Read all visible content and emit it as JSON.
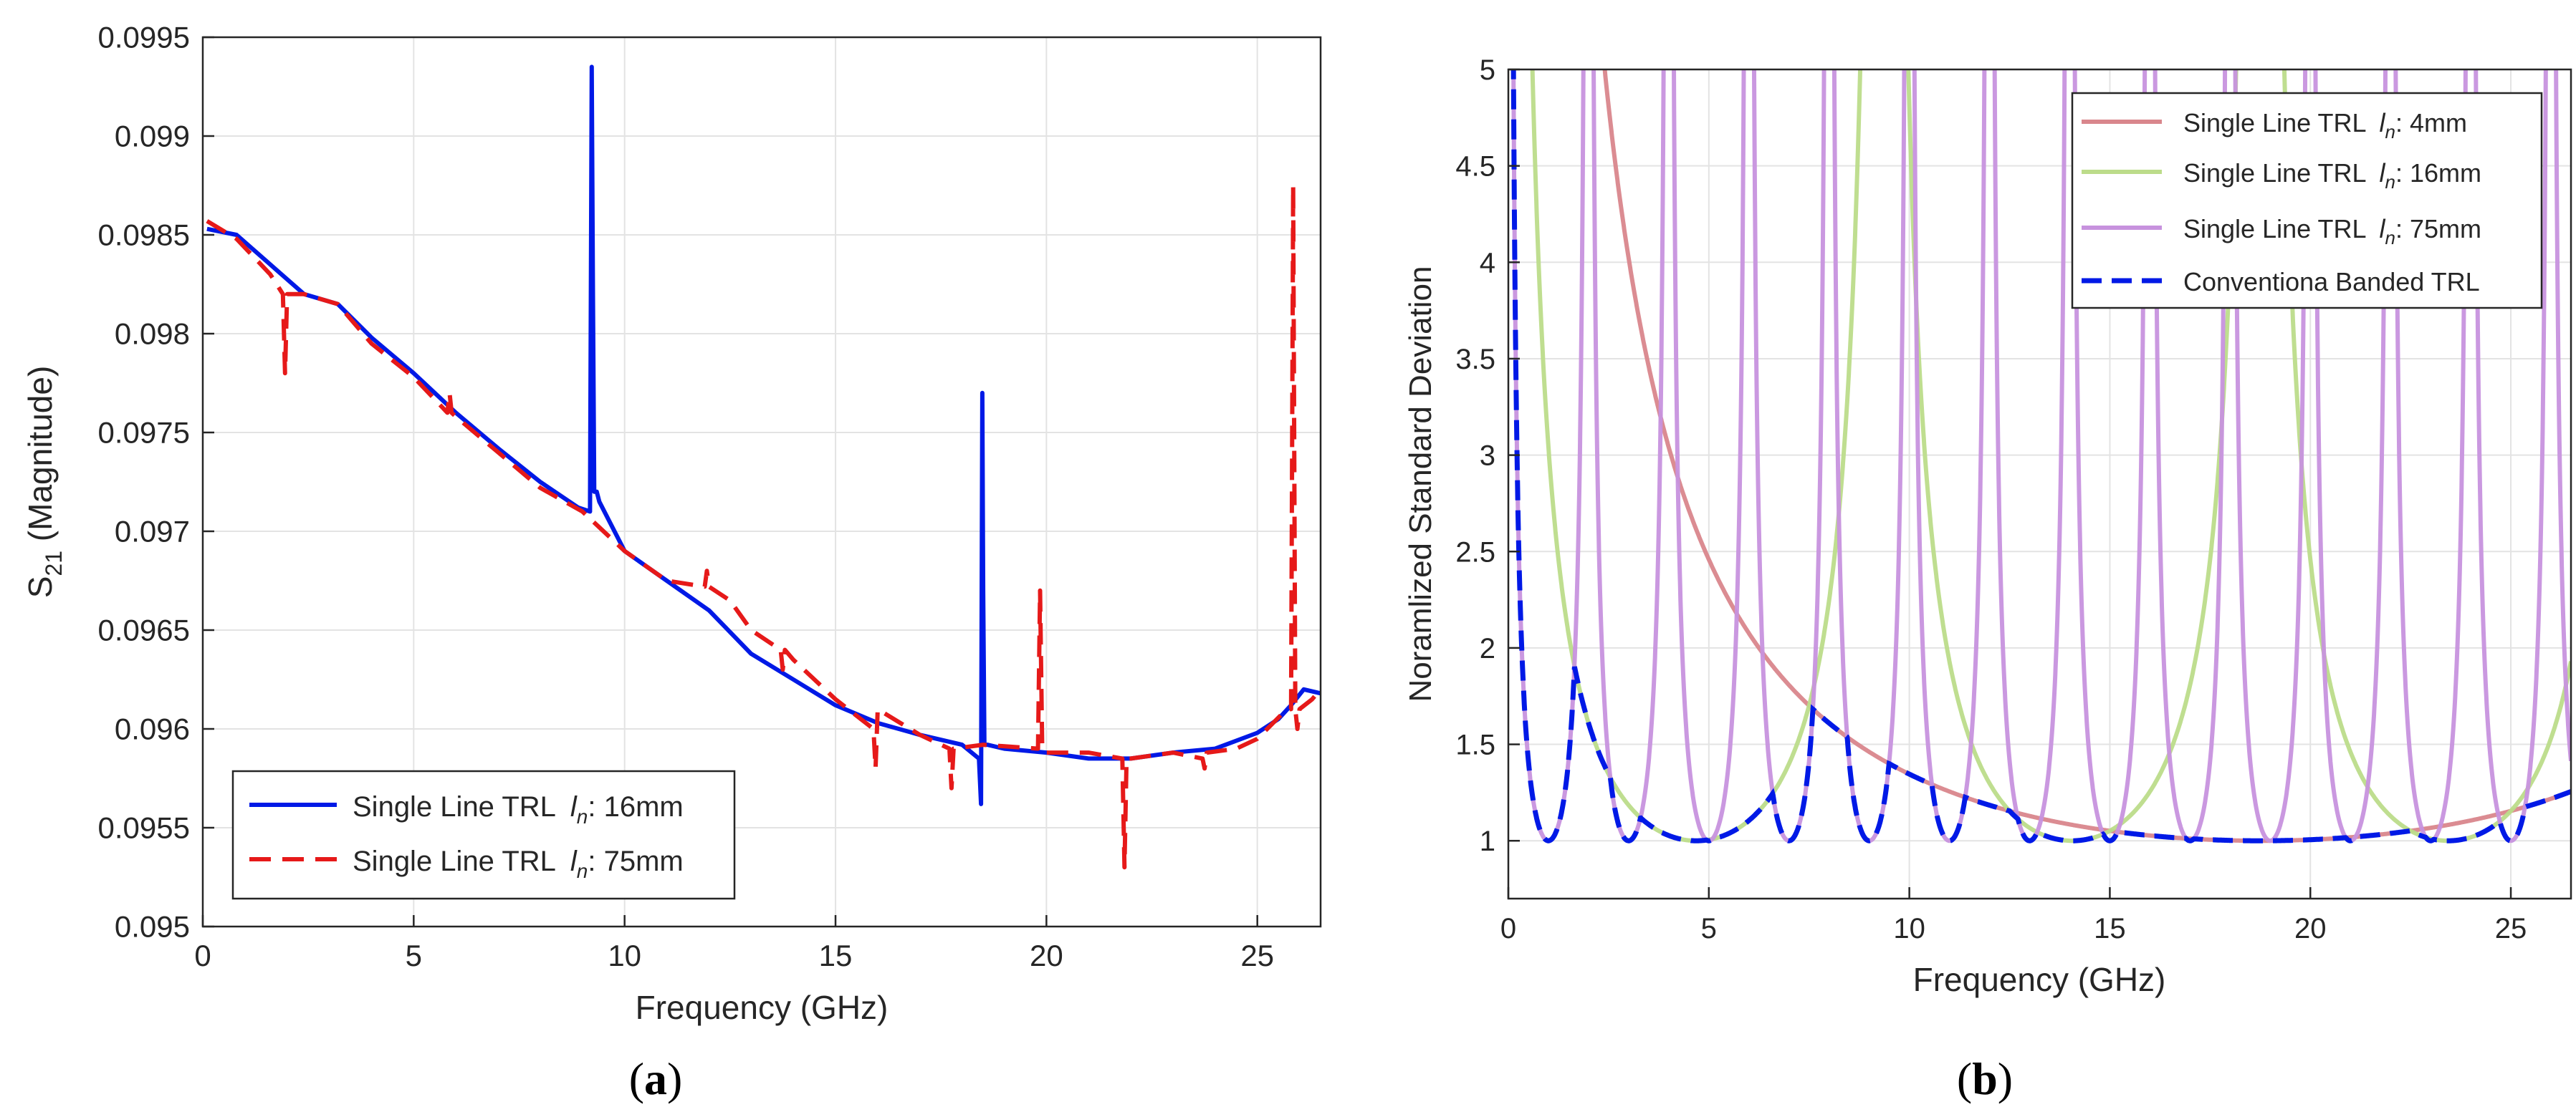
{
  "chart_data": [
    {
      "id": "a",
      "type": "line",
      "panel_label": "(a)",
      "panel_label_letter": "a",
      "title": "",
      "xlabel": "Frequency (GHz)",
      "ylabel_main": "S",
      "ylabel_sub": "21",
      "ylabel_rest": " (Magnitude)",
      "xlim": [
        0,
        26.5
      ],
      "ylim": [
        0.095,
        0.0995
      ],
      "xticks": [
        0,
        5,
        10,
        15,
        20,
        25
      ],
      "xtick_labels": [
        "0",
        "5",
        "10",
        "15",
        "20",
        "25"
      ],
      "yticks": [
        0.095,
        0.0955,
        0.096,
        0.0965,
        0.097,
        0.0975,
        0.098,
        0.0985,
        0.099,
        0.0995
      ],
      "ytick_labels": [
        "0.095",
        "0.0955",
        "0.096",
        "0.0965",
        "0.097",
        "0.0975",
        "0.098",
        "0.0985",
        "0.099",
        "0.0995"
      ],
      "grid": true,
      "legend_position": "bottom-left",
      "series": [
        {
          "name": "Single Line TRL",
          "legend_var": "l",
          "legend_sub": "n",
          "legend_value": ": 16mm",
          "color": "#0019e6",
          "dash": "solid",
          "x": [
            0.1,
            0.8,
            1.6,
            2.4,
            3.2,
            4.0,
            5.0,
            6.0,
            7.0,
            8.0,
            8.9,
            9.18,
            9.2,
            9.22,
            9.25,
            9.28,
            9.31,
            9.34,
            9.4,
            10.0,
            11.0,
            12.0,
            13.0,
            14.0,
            15.0,
            16.0,
            17.0,
            18.0,
            18.4,
            18.45,
            18.48,
            18.5,
            18.53,
            18.56,
            18.6,
            19.0,
            20.0,
            21.0,
            22.0,
            23.0,
            24.0,
            25.0,
            25.5,
            25.8,
            26.1,
            26.5
          ],
          "values": [
            0.09853,
            0.0985,
            0.09835,
            0.0982,
            0.09815,
            0.09798,
            0.0978,
            0.0976,
            0.09742,
            0.09725,
            0.09712,
            0.0971,
            0.0982,
            0.09935,
            0.0982,
            0.0972,
            0.0972,
            0.0972,
            0.09715,
            0.0969,
            0.09675,
            0.0966,
            0.09638,
            0.09625,
            0.09612,
            0.09603,
            0.09597,
            0.09592,
            0.09585,
            0.09562,
            0.0977,
            0.0967,
            0.09592,
            0.09592,
            0.09592,
            0.0959,
            0.09588,
            0.09585,
            0.09585,
            0.09588,
            0.0959,
            0.09598,
            0.09605,
            0.09612,
            0.0962,
            0.09618
          ]
        },
        {
          "name": "Single Line TRL",
          "legend_var": "l",
          "legend_sub": "n",
          "legend_value": ": 75mm",
          "color": "#e61919",
          "dash": "dashed",
          "x": [
            0.1,
            0.8,
            1.6,
            1.9,
            1.95,
            2.0,
            2.05,
            2.1,
            2.4,
            3.2,
            4.0,
            5.0,
            5.8,
            5.85,
            5.9,
            6.0,
            7.0,
            8.0,
            9.0,
            10.0,
            11.0,
            11.9,
            11.95,
            12.0,
            12.5,
            13.0,
            13.7,
            13.75,
            13.8,
            14.0,
            15.0,
            15.9,
            15.95,
            16.0,
            17.0,
            17.7,
            17.75,
            17.8,
            18.5,
            19.8,
            19.85,
            19.9,
            20.0,
            21.0,
            21.8,
            21.85,
            21.9,
            22.0,
            23.0,
            23.7,
            23.75,
            23.8,
            24.5,
            25.0,
            25.7,
            25.8,
            25.85,
            25.9,
            25.95,
            26.0,
            26.3,
            26.5
          ],
          "values": [
            0.09857,
            0.09848,
            0.0983,
            0.0982,
            0.0978,
            0.0982,
            0.0982,
            0.0982,
            0.0982,
            0.09815,
            0.09795,
            0.09778,
            0.0976,
            0.0977,
            0.0976,
            0.09758,
            0.0974,
            0.09722,
            0.0971,
            0.0969,
            0.09675,
            0.09672,
            0.0968,
            0.09672,
            0.09665,
            0.0965,
            0.0964,
            0.0963,
            0.0964,
            0.09635,
            0.09615,
            0.096,
            0.0958,
            0.0961,
            0.09597,
            0.0959,
            0.0957,
            0.0959,
            0.09592,
            0.0959,
            0.0967,
            0.0959,
            0.09588,
            0.09588,
            0.09585,
            0.0953,
            0.09585,
            0.09585,
            0.09588,
            0.09585,
            0.0958,
            0.09588,
            0.0959,
            0.09595,
            0.0961,
            0.0961,
            0.09875,
            0.0961,
            0.096,
            0.0961,
            0.09615,
            0.0962
          ]
        }
      ]
    },
    {
      "id": "b",
      "type": "line",
      "panel_label": "(b)",
      "panel_label_letter": "b",
      "title": "",
      "xlabel": "Frequency (GHz)",
      "ylabel": "Noramlized Standard Deviation",
      "xlim": [
        0,
        26.5
      ],
      "ylim": [
        0.7,
        5
      ],
      "xticks": [
        0,
        5,
        10,
        15,
        20,
        25
      ],
      "xtick_labels": [
        "0",
        "5",
        "10",
        "15",
        "20",
        "25"
      ],
      "yticks": [
        1,
        1.5,
        2,
        2.5,
        3,
        3.5,
        4,
        4.5,
        5
      ],
      "ytick_labels": [
        "1",
        "1.5",
        "2",
        "2.5",
        "3",
        "3.5",
        "4",
        "4.5",
        "5"
      ],
      "grid": true,
      "legend_position": "top-right",
      "series": [
        {
          "name": "Single Line TRL",
          "legend_var": "l",
          "legend_sub": "n",
          "legend_value": ": 4mm",
          "color": "#d9868c",
          "dash": "solid",
          "model": "1/|sin(pi*f/f_half)|",
          "f_half_GHz": 37.5
        },
        {
          "name": "Single Line TRL",
          "legend_var": "l",
          "legend_sub": "n",
          "legend_value": ": 16mm",
          "color": "#bcdc8a",
          "dash": "solid",
          "model": "1/|sin(pi*f/f_half)|",
          "f_half_GHz": 9.375
        },
        {
          "name": "Single Line TRL",
          "legend_var": "l",
          "legend_sub": "n",
          "legend_value": ": 75mm",
          "color": "#c792de",
          "dash": "solid",
          "model": "1/|sin(pi*f/f_half)|",
          "f_half_GHz": 2.0
        },
        {
          "name": "Conventiona Banded TRL",
          "legend_var": "",
          "legend_sub": "",
          "legend_value": "",
          "color": "#0019e6",
          "dash": "dashed",
          "model": "min over the three lines"
        }
      ]
    }
  ]
}
